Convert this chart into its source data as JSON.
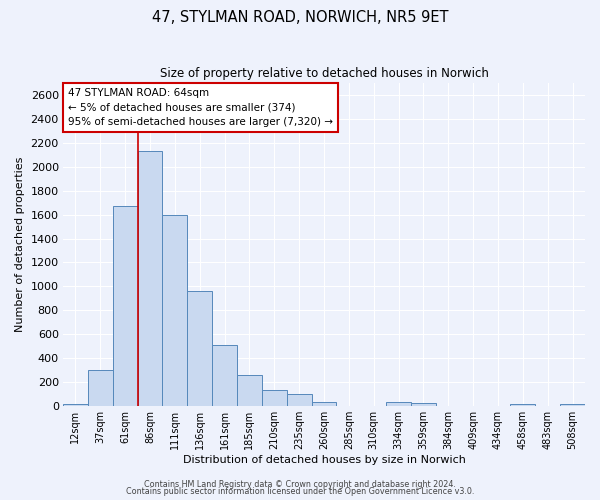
{
  "title": "47, STYLMAN ROAD, NORWICH, NR5 9ET",
  "subtitle": "Size of property relative to detached houses in Norwich",
  "xlabel": "Distribution of detached houses by size in Norwich",
  "ylabel": "Number of detached properties",
  "bin_labels": [
    "12sqm",
    "37sqm",
    "61sqm",
    "86sqm",
    "111sqm",
    "136sqm",
    "161sqm",
    "185sqm",
    "210sqm",
    "235sqm",
    "260sqm",
    "285sqm",
    "310sqm",
    "334sqm",
    "359sqm",
    "384sqm",
    "409sqm",
    "434sqm",
    "458sqm",
    "483sqm",
    "508sqm"
  ],
  "bar_values": [
    20,
    300,
    1670,
    2130,
    1600,
    960,
    510,
    255,
    130,
    100,
    30,
    0,
    0,
    30,
    25,
    0,
    0,
    0,
    20,
    0,
    20
  ],
  "bar_color": "#c9d9f0",
  "bar_edge_color": "#5588bb",
  "ylim": [
    0,
    2700
  ],
  "yticks": [
    0,
    200,
    400,
    600,
    800,
    1000,
    1200,
    1400,
    1600,
    1800,
    2000,
    2200,
    2400,
    2600
  ],
  "vline_color": "#cc0000",
  "vline_pos": 2.5,
  "annotation_box_text": "47 STYLMAN ROAD: 64sqm\n← 5% of detached houses are smaller (374)\n95% of semi-detached houses are larger (7,320) →",
  "footnote1": "Contains HM Land Registry data © Crown copyright and database right 2024.",
  "footnote2": "Contains public sector information licensed under the Open Government Licence v3.0.",
  "bg_color": "#eef2fc",
  "grid_color": "#ffffff"
}
